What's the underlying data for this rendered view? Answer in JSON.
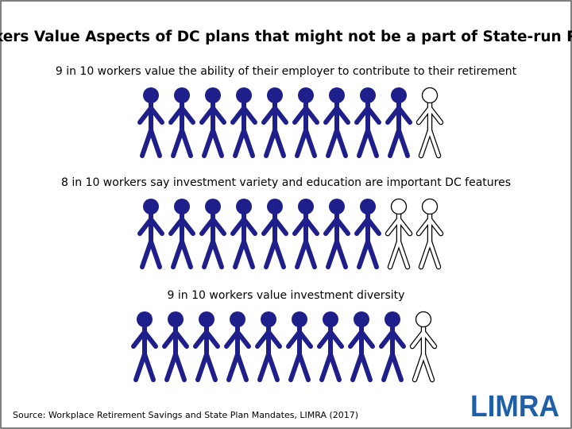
{
  "title": "Workers Value Aspects of DC plans that might not be a part of State-run Plans",
  "rows": [
    {
      "caption": "9 in 10 workers value the ability of their employer to contribute to their retirement",
      "filled": 9,
      "total": 10
    },
    {
      "caption": "8 in 10 workers say investment variety and education are important DC features",
      "filled": 8,
      "total": 10
    },
    {
      "caption": "9 in 10 workers value investment diversity",
      "filled": 9,
      "total": 10
    }
  ],
  "source": "Source: Workplace Retirement Savings and State Plan Mandates, LIMRA (2017)",
  "logo": "LIMRA"
}
